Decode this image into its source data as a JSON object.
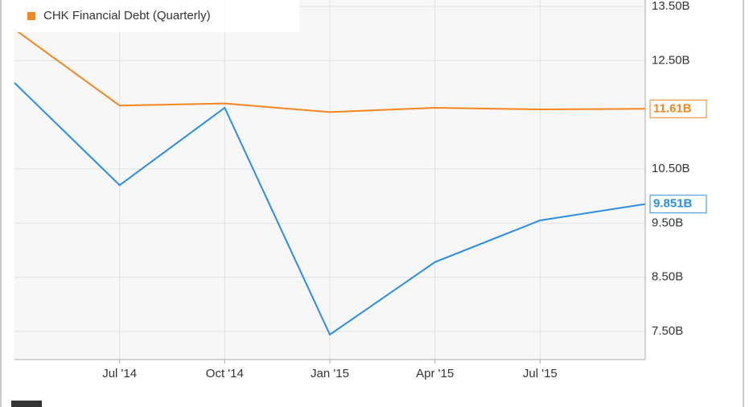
{
  "chart_data": {
    "type": "line",
    "categories": [
      null,
      "Jul '14",
      "Oct '14",
      "Jan '15",
      "Apr '15",
      "Jul '15",
      null
    ],
    "series": [
      {
        "color": "#2b8ee6",
        "values": [
          12.09,
          10.2,
          11.63,
          7.44,
          8.78,
          9.55,
          9.851
        ],
        "value_labels": [
          null,
          null,
          null,
          null,
          null,
          null,
          "9.851B"
        ]
      },
      {
        "name": "CHK Financial Debt (Quarterly)",
        "color": "#f5861f",
        "values": [
          13.08,
          11.67,
          11.71,
          11.55,
          11.63,
          11.6,
          11.61
        ],
        "value_labels": [
          null,
          null,
          null,
          null,
          null,
          null,
          "11.61B"
        ]
      }
    ],
    "ylim": [
      6.98,
      13.62
    ],
    "yticks": [
      {
        "value": 7.5,
        "label": "7.50B"
      },
      {
        "value": 8.5,
        "label": "8.50B"
      },
      {
        "value": 9.5,
        "label": "9.50B"
      },
      {
        "value": 10.5,
        "label": "10.50B"
      },
      {
        "value": 12.5,
        "label": "12.50B"
      },
      {
        "value": 13.5,
        "label": "13.50B"
      }
    ],
    "grid": true
  }
}
